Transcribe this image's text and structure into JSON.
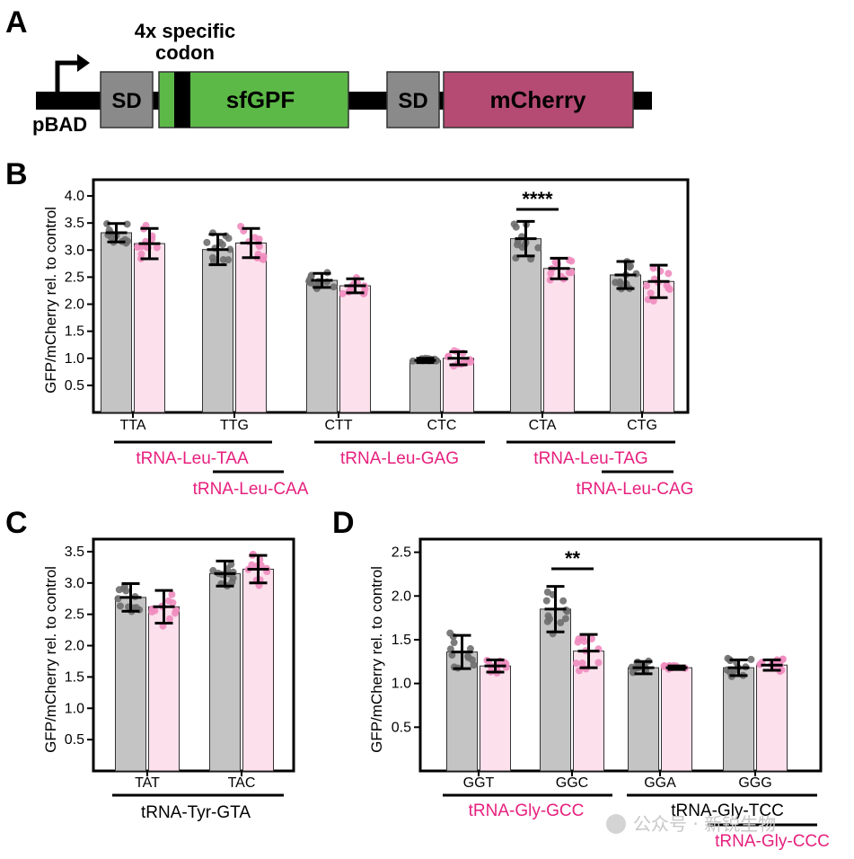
{
  "colors": {
    "bar_gray": "#c4c4c4",
    "bar_pink": "#fce0ec",
    "dot_gray": "#6e6e6e",
    "dot_pink": "#f08cbf",
    "magenta_text": "#e6207e",
    "sfgfp_green": "#5cb947",
    "mcherry_red": "#b54a72",
    "sd_gray": "#8a8a8a"
  },
  "panel_a": {
    "letter": "A",
    "codon_note_line1": "4x specific",
    "codon_note_line2": "codon",
    "promoter": "pBAD",
    "sd1": "SD",
    "gfp": "sfGPF",
    "sd2": "SD",
    "mcherry": "mCherry"
  },
  "watermark": "公众号 · 新锐生物",
  "chart_data": [
    {
      "panel": "B",
      "type": "bar",
      "ylabel": "GFP/mCherry rel. to control",
      "ylim": [
        0,
        4.3
      ],
      "yticks": [
        "0.5",
        "1.0",
        "1.5",
        "2.0",
        "2.5",
        "3.0",
        "3.5",
        "4.0"
      ],
      "categories": [
        "TTA",
        "TTG",
        "CTT",
        "CTC",
        "CTA",
        "CTG"
      ],
      "series": [
        {
          "values": [
            3.32,
            3.01,
            2.44,
            0.96,
            3.21,
            2.54
          ],
          "errors": [
            0.17,
            0.28,
            0.13,
            0.04,
            0.32,
            0.25
          ]
        },
        {
          "values": [
            3.12,
            3.13,
            2.34,
            1.0,
            2.66,
            2.42
          ],
          "errors": [
            0.28,
            0.27,
            0.13,
            0.12,
            0.19,
            0.3
          ]
        }
      ],
      "significance": [
        {
          "label": "****",
          "category": "CTA"
        }
      ],
      "trna_labels": [
        {
          "text": "tRNA-Leu-TAA",
          "color": "magenta"
        },
        {
          "text": "tRNA-Leu-CAA",
          "color": "magenta"
        },
        {
          "text": "tRNA-Leu-GAG",
          "color": "magenta"
        },
        {
          "text": "tRNA-Leu-TAG",
          "color": "magenta"
        },
        {
          "text": "tRNA-Leu-CAG",
          "color": "magenta"
        }
      ]
    },
    {
      "panel": "C",
      "type": "bar",
      "ylabel": "GFP/mCherry rel. to control",
      "ylim": [
        0,
        3.7
      ],
      "yticks": [
        "0.5",
        "1.0",
        "1.5",
        "2.0",
        "2.5",
        "3.0",
        "3.5"
      ],
      "categories": [
        "TAT",
        "TAC"
      ],
      "series": [
        {
          "values": [
            2.77,
            3.15
          ],
          "errors": [
            0.22,
            0.2
          ]
        },
        {
          "values": [
            2.62,
            3.22
          ],
          "errors": [
            0.26,
            0.22
          ]
        }
      ],
      "significance": [],
      "trna_labels": [
        {
          "text": "tRNA-Tyr-GTA",
          "color": "black"
        }
      ]
    },
    {
      "panel": "D",
      "type": "bar",
      "ylabel": "GFP/mCherry rel. to control",
      "ylim": [
        0,
        2.65
      ],
      "yticks": [
        "0.5",
        "1.0",
        "1.5",
        "2.0",
        "2.5"
      ],
      "categories": [
        "GGT",
        "GGC",
        "GGA",
        "GGG"
      ],
      "series": [
        {
          "values": [
            1.36,
            1.85,
            1.18,
            1.18
          ],
          "errors": [
            0.19,
            0.26,
            0.07,
            0.09
          ]
        },
        {
          "values": [
            1.2,
            1.37,
            1.18,
            1.21
          ],
          "errors": [
            0.07,
            0.19,
            0.02,
            0.06
          ]
        }
      ],
      "significance": [
        {
          "label": "**",
          "category": "GGC"
        }
      ],
      "trna_labels": [
        {
          "text": "tRNA-Gly-GCC",
          "color": "magenta"
        },
        {
          "text": "tRNA-Gly-TCC",
          "color": "black"
        },
        {
          "text": "tRNA-Gly-CCC",
          "color": "magenta"
        }
      ]
    }
  ]
}
